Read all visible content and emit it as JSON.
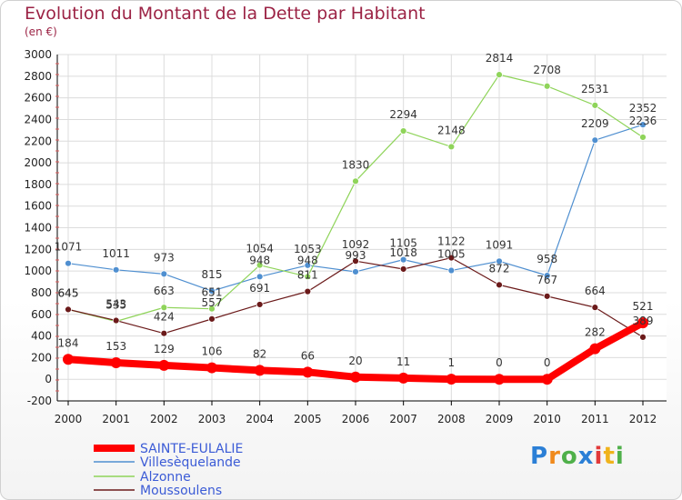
{
  "header": {
    "title": "Evolution du Montant de la Dette par Habitant",
    "subtitle": "(en €)"
  },
  "chart_data": {
    "type": "line",
    "title": "Evolution du Montant de la Dette par Habitant",
    "subtitle": "(en €)",
    "x": [
      "2000",
      "2001",
      "2002",
      "2003",
      "2004",
      "2005",
      "2006",
      "2007",
      "2008",
      "2009",
      "2010",
      "2011",
      "2012"
    ],
    "ylim": [
      -200,
      3000
    ],
    "yticks": [
      -200,
      0,
      200,
      400,
      600,
      800,
      1000,
      1200,
      1400,
      1600,
      1800,
      2000,
      2200,
      2400,
      2600,
      2800,
      3000
    ],
    "grid": true,
    "legend": "bottom-left",
    "series": [
      {
        "name": "SAINTE-EULALIE",
        "color": "#ff0000",
        "values": [
          184,
          153,
          129,
          106,
          82,
          66,
          20,
          11,
          1,
          0,
          0,
          282,
          521
        ]
      },
      {
        "name": "Villesèquelande",
        "color": "#4f8fd0",
        "values": [
          1071,
          1011,
          973,
          815,
          948,
          1053,
          993,
          1105,
          1005,
          1091,
          958,
          2209,
          2352
        ]
      },
      {
        "name": "Alzonne",
        "color": "#8fd45a",
        "values": [
          645,
          535,
          663,
          651,
          1054,
          948,
          1830,
          2294,
          2148,
          2814,
          2708,
          2531,
          2236
        ]
      },
      {
        "name": "Moussoulens",
        "color": "#6b1a1a",
        "values": [
          645,
          543,
          424,
          557,
          691,
          811,
          1092,
          1018,
          1122,
          872,
          767,
          664,
          389
        ]
      }
    ]
  },
  "logo": {
    "letters": [
      "P",
      "r",
      "o",
      "x",
      "i",
      "t",
      "i"
    ],
    "colors": [
      "#2b7fd6",
      "#f08a1c",
      "#4fb04a",
      "#2b7fd6",
      "#e23a3a",
      "#f0b31c",
      "#4fb04a"
    ]
  }
}
